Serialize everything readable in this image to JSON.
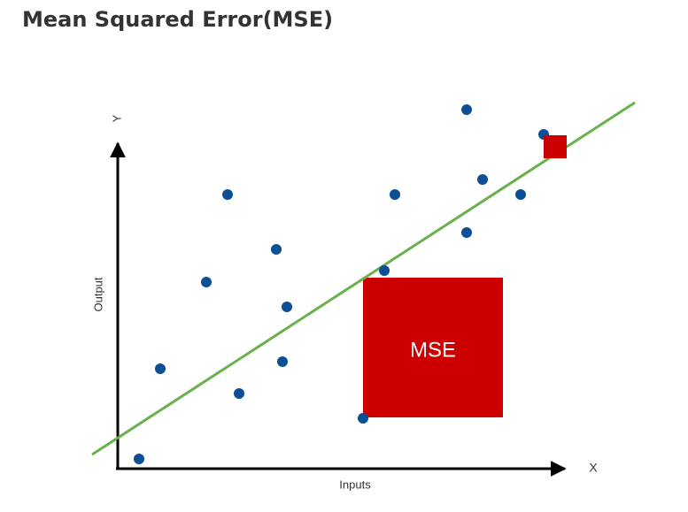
{
  "header": {
    "title": "Mean Squared Error(MSE)"
  },
  "diagram": {
    "y_axis_letter": "Y",
    "x_axis_letter": "X",
    "y_axis_label": "Output",
    "x_axis_label": "Inputs",
    "box_label": "MSE"
  }
}
